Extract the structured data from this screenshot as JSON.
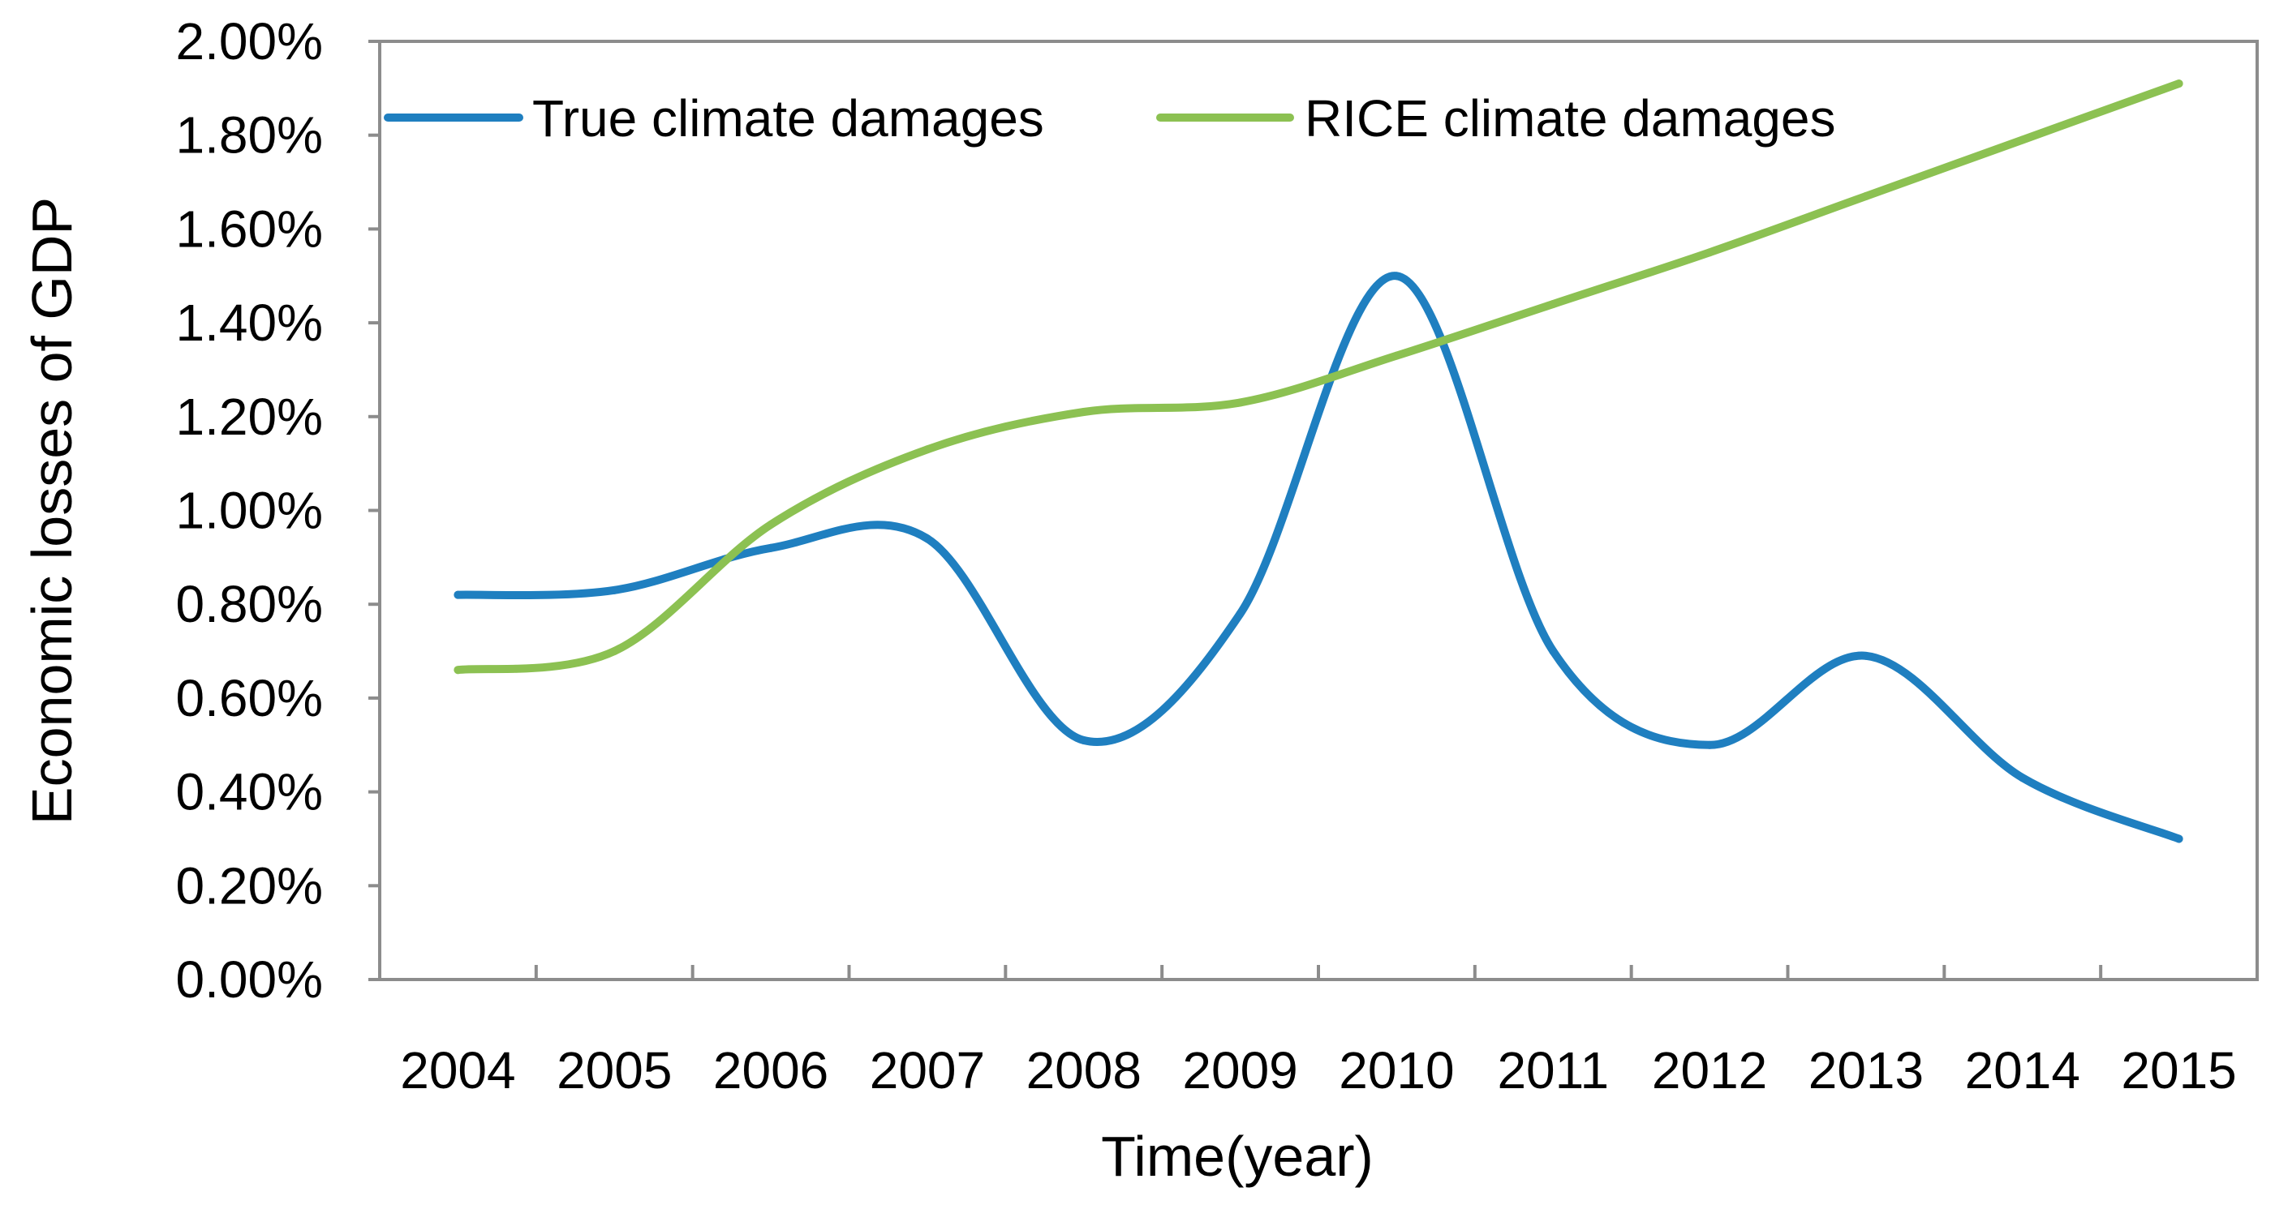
{
  "chart_data": {
    "type": "line",
    "title": "",
    "xlabel": "Time(year)",
    "ylabel": "Economic losses of GDP",
    "categories": [
      "2004",
      "2005",
      "2006",
      "2007",
      "2008",
      "2009",
      "2010",
      "2011",
      "2012",
      "2013",
      "2014",
      "2015"
    ],
    "ylim": [
      0,
      0.02
    ],
    "ytick_values": [
      0,
      0.002,
      0.004,
      0.006,
      0.008,
      0.01,
      0.012,
      0.014,
      0.016,
      0.018,
      0.02
    ],
    "ytick_labels": [
      "0.00%",
      "0.20%",
      "0.40%",
      "0.60%",
      "0.80%",
      "1.00%",
      "1.20%",
      "1.40%",
      "1.60%",
      "1.80%",
      "2.00%"
    ],
    "grid": false,
    "legend_position": "top-left, inside plot",
    "series": [
      {
        "name": "True climate damages",
        "color": "#1f7fc0",
        "values": [
          0.0082,
          0.0083,
          0.0092,
          0.0094,
          0.0051,
          0.0078,
          0.015,
          0.007,
          0.005,
          0.0069,
          0.0043,
          0.003
        ]
      },
      {
        "name": "RICE climate damages",
        "color": "#8cc152",
        "values": [
          0.0066,
          0.007,
          0.0097,
          0.0113,
          0.0121,
          0.0123,
          0.0133,
          0.0144,
          0.0155,
          0.0167,
          0.0179,
          0.0191
        ]
      }
    ]
  }
}
